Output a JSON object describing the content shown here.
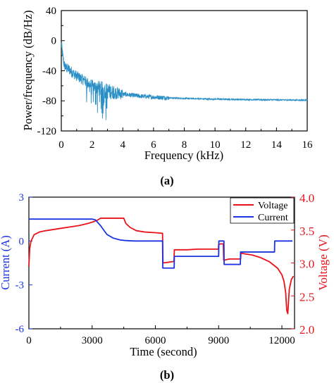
{
  "chart_data": [
    {
      "panel_label": "(a)",
      "type": "line",
      "xlabel": "Frequency (kHz)",
      "ylabel": "Power/frequency (dB/Hz)",
      "xlim": [
        0,
        16
      ],
      "ylim": [
        -120,
        40
      ],
      "x_ticks": [
        "0",
        "2",
        "4",
        "6",
        "8",
        "10",
        "12",
        "14",
        "16"
      ],
      "y_ticks": [
        "40",
        "0",
        "-40",
        "-80",
        "-120"
      ],
      "grid": false,
      "color": "#2a8fc6",
      "series": [
        {
          "x": [
            0,
            0.05,
            0.1,
            0.2,
            0.3,
            0.5,
            0.75,
            1.0,
            1.25,
            1.5,
            1.75,
            2.0,
            2.5,
            3.0,
            3.5,
            4.0,
            5.0,
            6.0,
            7.0,
            8.0,
            9.0,
            10.0,
            11.0,
            12.0,
            13.0,
            14.0,
            15.0,
            16.0
          ],
          "y": [
            -5,
            -12,
            -22,
            -33,
            -36,
            -38,
            -43,
            -47,
            -50,
            -53,
            -57,
            -60,
            -64,
            -67,
            -69,
            -71,
            -73.5,
            -75,
            -76,
            -76.8,
            -77.3,
            -77.7,
            -78,
            -78.3,
            -78.5,
            -78.7,
            -78.9,
            -79
          ]
        }
      ]
    },
    {
      "panel_label": "(b)",
      "type": "line",
      "xlabel": "Time (second)",
      "ylabel_left": "Current (A)",
      "ylabel_right": "Voltage (V)",
      "xlim": [
        0,
        12600
      ],
      "ylim_left": [
        -6,
        3
      ],
      "ylim_right": [
        2.0,
        4.0
      ],
      "x_ticks": [
        "0",
        "3000",
        "6000",
        "9000",
        "12000"
      ],
      "y_ticks_left": [
        "3",
        "0",
        "-3",
        "-6"
      ],
      "y_ticks_right": [
        "4.0",
        "3.5",
        "3.0",
        "2.5",
        "2.0"
      ],
      "legend_position": "top-right",
      "grid": false,
      "series": [
        {
          "name": "Voltage",
          "axis": "right",
          "color": "#e8131b",
          "x": [
            0,
            40,
            100,
            250,
            500,
            800,
            1200,
            1600,
            2000,
            2400,
            2800,
            3100,
            3250,
            3400,
            3600,
            4500,
            4600,
            4800,
            5100,
            5500,
            6000,
            6340,
            6360,
            6600,
            6800,
            6880,
            6900,
            7500,
            8000,
            8500,
            8990,
            9000,
            9100,
            9200,
            9220,
            9240,
            9500,
            10000,
            10040,
            10060,
            10200,
            10600,
            11000,
            11400,
            11800,
            12000,
            12100,
            12180,
            12230,
            12280,
            12350,
            12450,
            12550
          ],
          "y": [
            2.95,
            3.22,
            3.33,
            3.43,
            3.47,
            3.49,
            3.51,
            3.53,
            3.55,
            3.57,
            3.6,
            3.63,
            3.65,
            3.68,
            3.68,
            3.68,
            3.6,
            3.54,
            3.49,
            3.47,
            3.46,
            3.45,
            3.0,
            3.01,
            3.02,
            3.02,
            3.2,
            3.2,
            3.21,
            3.21,
            3.21,
            3.28,
            3.29,
            3.29,
            3.29,
            3.04,
            3.06,
            3.06,
            3.06,
            3.15,
            3.14,
            3.12,
            3.08,
            3.02,
            2.92,
            2.82,
            2.72,
            2.55,
            2.28,
            2.23,
            2.6,
            2.75,
            2.8
          ]
        },
        {
          "name": "Current",
          "axis": "left",
          "color": "#1c33e3",
          "x": [
            0,
            3000,
            3150,
            3400,
            3700,
            4000,
            4300,
            4600,
            5000,
            6340,
            6350,
            6890,
            6900,
            9000,
            9010,
            9250,
            9260,
            10030,
            10040,
            11650,
            11660,
            12500
          ],
          "y": [
            1.5,
            1.5,
            1.45,
            1.05,
            0.45,
            0.2,
            0.08,
            0.03,
            0.0,
            0.0,
            -1.85,
            -1.85,
            -1.05,
            -1.05,
            0.0,
            0.0,
            -1.6,
            -1.6,
            -0.75,
            -0.75,
            0.0,
            0.0
          ]
        }
      ]
    }
  ]
}
